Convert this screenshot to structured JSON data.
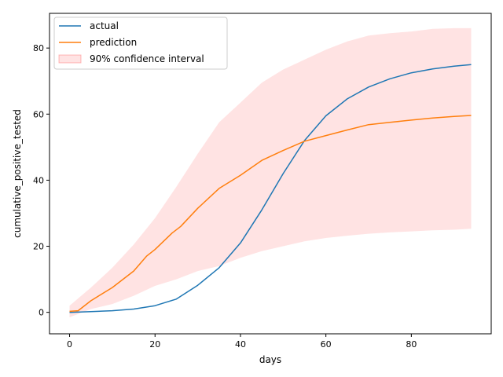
{
  "chart_data": {
    "type": "line",
    "xlabel": "days",
    "ylabel": "cumulative_positive_tested",
    "xlim": [
      -4.7,
      98.7
    ],
    "ylim": [
      -6.5,
      90.5
    ],
    "xticks": [
      0,
      20,
      40,
      60,
      80
    ],
    "yticks": [
      0,
      20,
      40,
      60,
      80
    ],
    "grid": false,
    "legend_position": "top-left",
    "series": [
      {
        "name": "actual",
        "color": "#1f77b4",
        "x": [
          0,
          5,
          10,
          15,
          20,
          25,
          30,
          35,
          40,
          45,
          50,
          55,
          60,
          65,
          70,
          75,
          80,
          85,
          90,
          94
        ],
        "y": [
          0.0,
          0.2,
          0.5,
          1.0,
          2.0,
          4.0,
          8.2,
          13.5,
          21.0,
          31.0,
          42.0,
          52.0,
          59.5,
          64.6,
          68.2,
          70.7,
          72.5,
          73.7,
          74.5,
          75.0
        ]
      },
      {
        "name": "prediction",
        "color": "#ff7f0e",
        "x": [
          0,
          2,
          5,
          10,
          15,
          18,
          20,
          24,
          26,
          30,
          35,
          40,
          45,
          50,
          55,
          60,
          65,
          70,
          75,
          80,
          85,
          90,
          94
        ],
        "y": [
          0.3,
          0.5,
          3.5,
          7.5,
          12.5,
          17.0,
          19.0,
          24.0,
          26.0,
          31.5,
          37.5,
          41.5,
          46.0,
          49.0,
          51.8,
          53.5,
          55.2,
          56.8,
          57.5,
          58.2,
          58.8,
          59.3,
          59.6
        ]
      }
    ],
    "band": {
      "name": "90% confidence interval",
      "color": "#ff0000",
      "opacity": 0.11,
      "x": [
        0,
        5,
        10,
        15,
        20,
        25,
        30,
        35,
        40,
        45,
        50,
        55,
        60,
        65,
        70,
        75,
        80,
        85,
        90,
        94
      ],
      "upper": [
        2.0,
        7.5,
        13.5,
        20.5,
        28.5,
        38.0,
        48.0,
        57.5,
        63.5,
        69.5,
        73.5,
        76.5,
        79.5,
        82.0,
        83.8,
        84.5,
        85.0,
        85.8,
        86.0,
        86.0
      ],
      "lower": [
        -1.5,
        1.0,
        2.5,
        5.0,
        8.0,
        10.0,
        12.5,
        14.0,
        16.5,
        18.5,
        20.0,
        21.5,
        22.5,
        23.2,
        23.8,
        24.2,
        24.5,
        24.8,
        25.0,
        25.3
      ]
    }
  }
}
